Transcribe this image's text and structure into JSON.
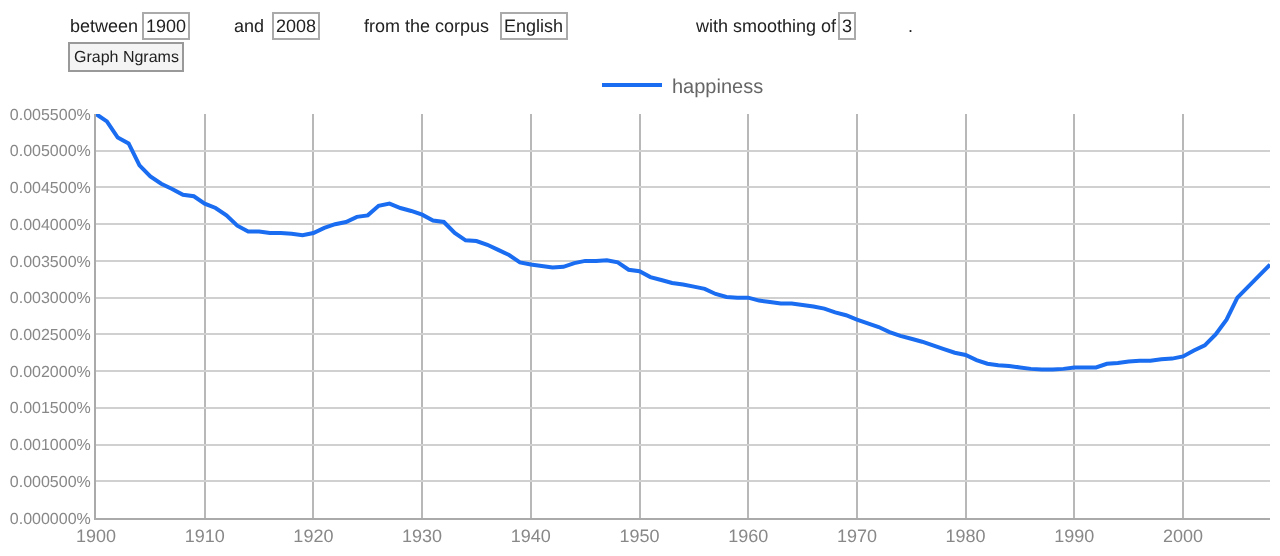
{
  "chart_data": {
    "type": "line",
    "annotations": [
      "between",
      "1900",
      "and",
      "2008",
      "from the corpus",
      "English",
      "with smoothing of",
      "3",
      ".",
      "Graph Ngrams"
    ],
    "x": [
      1900,
      1901,
      1902,
      1903,
      1904,
      1905,
      1906,
      1907,
      1908,
      1909,
      1910,
      1911,
      1912,
      1913,
      1914,
      1915,
      1916,
      1917,
      1918,
      1919,
      1920,
      1921,
      1922,
      1923,
      1924,
      1925,
      1926,
      1927,
      1928,
      1929,
      1930,
      1931,
      1932,
      1933,
      1934,
      1935,
      1936,
      1937,
      1938,
      1939,
      1940,
      1941,
      1942,
      1943,
      1944,
      1945,
      1946,
      1947,
      1948,
      1949,
      1950,
      1951,
      1952,
      1953,
      1954,
      1955,
      1956,
      1957,
      1958,
      1959,
      1960,
      1961,
      1962,
      1963,
      1964,
      1965,
      1966,
      1967,
      1968,
      1969,
      1970,
      1971,
      1972,
      1973,
      1974,
      1975,
      1976,
      1977,
      1978,
      1979,
      1980,
      1981,
      1982,
      1983,
      1984,
      1985,
      1986,
      1987,
      1988,
      1989,
      1990,
      1991,
      1992,
      1993,
      1994,
      1995,
      1996,
      1997,
      1998,
      1999,
      2000,
      2001,
      2002,
      2003,
      2004,
      2005,
      2006,
      2007,
      2008
    ],
    "series": [
      {
        "name": "happiness",
        "color": "#1a6cf0",
        "values": [
          0.0055,
          0.0054,
          0.00518,
          0.0051,
          0.0048,
          0.00465,
          0.00455,
          0.00448,
          0.0044,
          0.00438,
          0.00428,
          0.00422,
          0.00412,
          0.00398,
          0.0039,
          0.0039,
          0.00388,
          0.00388,
          0.00387,
          0.00385,
          0.00388,
          0.00395,
          0.004,
          0.00403,
          0.0041,
          0.00412,
          0.00425,
          0.00428,
          0.00422,
          0.00418,
          0.00413,
          0.00405,
          0.00403,
          0.00388,
          0.00378,
          0.00377,
          0.00372,
          0.00365,
          0.00358,
          0.00348,
          0.00345,
          0.00343,
          0.00341,
          0.00342,
          0.00347,
          0.0035,
          0.0035,
          0.00351,
          0.00348,
          0.00338,
          0.00336,
          0.00328,
          0.00324,
          0.0032,
          0.00318,
          0.00315,
          0.00312,
          0.00305,
          0.00301,
          0.003,
          0.003,
          0.00296,
          0.00294,
          0.00292,
          0.00292,
          0.0029,
          0.00288,
          0.00285,
          0.0028,
          0.00276,
          0.0027,
          0.00265,
          0.0026,
          0.00253,
          0.00248,
          0.00244,
          0.0024,
          0.00235,
          0.0023,
          0.00225,
          0.00222,
          0.00215,
          0.0021,
          0.00208,
          0.00207,
          0.00205,
          0.00203,
          0.00202,
          0.00202,
          0.00203,
          0.00205,
          0.00205,
          0.00205,
          0.0021,
          0.00211,
          0.00213,
          0.00214,
          0.00214,
          0.00216,
          0.00217,
          0.0022,
          0.00228,
          0.00235,
          0.0025,
          0.0027,
          0.003,
          0.00315,
          0.0033,
          0.00345
        ]
      }
    ],
    "xlim": [
      1900,
      2008
    ],
    "xticks": [
      1900,
      1910,
      1920,
      1930,
      1940,
      1950,
      1960,
      1970,
      1980,
      1990,
      2000
    ],
    "ylim": [
      0,
      0.0055
    ],
    "yticks": [
      {
        "value": 0,
        "label": "0.000000%"
      },
      {
        "value": 0.0005,
        "label": "0.000500%"
      },
      {
        "value": 0.001,
        "label": "0.001000%"
      },
      {
        "value": 0.0015,
        "label": "0.001500%"
      },
      {
        "value": 0.002,
        "label": "0.002000%"
      },
      {
        "value": 0.0025,
        "label": "0.002500%"
      },
      {
        "value": 0.003,
        "label": "0.003000%"
      },
      {
        "value": 0.0035,
        "label": "0.003500%"
      },
      {
        "value": 0.004,
        "label": "0.004000%"
      },
      {
        "value": 0.0045,
        "label": "0.004500%"
      },
      {
        "value": 0.005,
        "label": "0.005000%"
      },
      {
        "value": 0.0055,
        "label": "0.005500%"
      }
    ],
    "grid": true,
    "legend": "top",
    "marker": "none",
    "line_style": "solid"
  }
}
